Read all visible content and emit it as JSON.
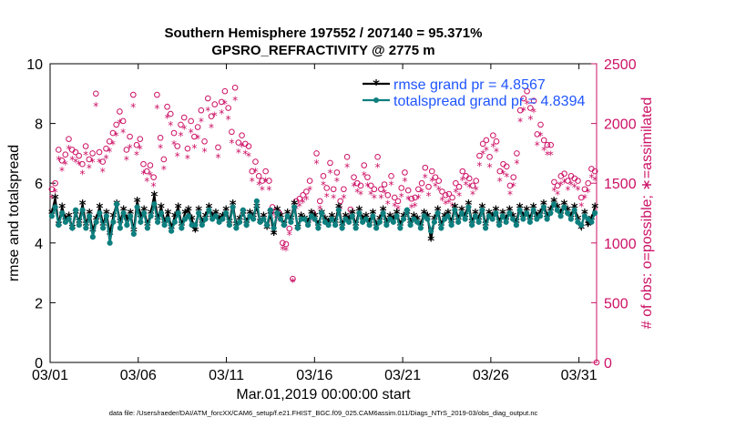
{
  "chart_data": {
    "type": "line",
    "title_line1": "Southern Hemisphere 197552 / 207140 = 95.371%",
    "title_line2": "GPSRO_REFRACTIVITY @ 2775 m",
    "xlabel": "Mar.01,2019 00:00:00 start",
    "ylabel_left": "rmse and totalspread",
    "ylabel_right": "# of obs: o=possible; ∗=assimilated",
    "footer": "data file: /Users/raeder/DAI/ATM_forcXX/CAM6_setup/f.e21.FHIST_BGC.f09_025.CAM6assim.011/Diags_NTrS_2019-03/obs_diag_output.nc",
    "x_ticks": [
      "03/01",
      "03/06",
      "03/11",
      "03/16",
      "03/21",
      "03/26",
      "03/31"
    ],
    "x_tick_days": [
      1,
      6,
      11,
      16,
      21,
      26,
      31
    ],
    "xlim_days": [
      1,
      32
    ],
    "ylim_left": [
      0,
      10
    ],
    "yticks_left": [
      0,
      2,
      4,
      6,
      8,
      10
    ],
    "ylim_right": [
      0,
      2500
    ],
    "yticks_right": [
      0,
      500,
      1000,
      1500,
      2000,
      2500
    ],
    "legend": {
      "location": "top-right",
      "entries": [
        "rmse grand pr = 4.8567",
        "totalspread grand pr = 4.8394"
      ]
    },
    "colors": {
      "rmse": "#000000",
      "spread": "#0f7f7f",
      "obs": "#cc1166",
      "right_axis": "#cc1166",
      "legend_text": "#1f55ff"
    },
    "series": [
      {
        "name": "rmse",
        "values": [
          5.0,
          5.5,
          4.6,
          5.2,
          4.8,
          4.9,
          4.5,
          5.0,
          4.7,
          5.3,
          4.6,
          5.0,
          4.4,
          4.8,
          5.2,
          4.6,
          5.0,
          4.3,
          4.9,
          5.3,
          4.7,
          5.1,
          4.8,
          5.0,
          4.4,
          5.4,
          4.9,
          5.1,
          4.6,
          5.0,
          5.6,
          4.8,
          5.2,
          4.7,
          5.0,
          4.5,
          4.9,
          5.2,
          4.6,
          5.0,
          5.1,
          4.8,
          4.4,
          5.1,
          4.7,
          4.9,
          5.2,
          4.9,
          5.0,
          4.8,
          4.9,
          5.1,
          4.7,
          5.3,
          4.6,
          4.8,
          5.0,
          4.7,
          5.0,
          4.9,
          5.2,
          4.7,
          4.9,
          4.5,
          5.0,
          4.3,
          5.1,
          4.9,
          4.6,
          5.0,
          4.8,
          5.3,
          4.5,
          4.9,
          4.8,
          4.7,
          5.0,
          4.9,
          4.6,
          5.0,
          4.8,
          4.7,
          4.9,
          4.7,
          5.2,
          4.6,
          4.9,
          4.8,
          5.0,
          4.6,
          5.1,
          4.8,
          4.9,
          4.7,
          5.0,
          4.6,
          4.8,
          5.1,
          4.7,
          4.9,
          4.8,
          5.0,
          4.6,
          4.9,
          5.0,
          4.7,
          4.9,
          4.8,
          4.6,
          5.0,
          4.9,
          4.1,
          4.8,
          5.1,
          4.6,
          4.9,
          5.0,
          4.7,
          5.2,
          4.8,
          5.1,
          4.9,
          5.3,
          4.7,
          5.0,
          4.8,
          5.2,
          4.6,
          5.0,
          4.9,
          5.1,
          4.7,
          5.0,
          4.8,
          5.1,
          4.9,
          4.7,
          5.2,
          4.9,
          5.1,
          4.8,
          5.2,
          4.9,
          5.0,
          5.3,
          4.9,
          5.1,
          5.4,
          5.2,
          5.0,
          5.3,
          5.1,
          4.9,
          5.2,
          4.8,
          4.5,
          5.0,
          4.6,
          4.8,
          5.2
        ]
      },
      {
        "name": "totalspread",
        "values": [
          4.9,
          5.2,
          4.6,
          5.0,
          4.7,
          4.8,
          4.5,
          5.1,
          4.6,
          5.1,
          4.5,
          4.9,
          4.2,
          4.7,
          5.0,
          4.5,
          4.9,
          4.0,
          4.7,
          5.3,
          4.5,
          5.0,
          4.6,
          4.9,
          4.3,
          5.2,
          4.7,
          5.0,
          4.5,
          4.9,
          5.3,
          4.7,
          5.0,
          4.6,
          4.8,
          4.4,
          4.7,
          5.0,
          4.5,
          4.8,
          4.9,
          4.6,
          4.6,
          5.0,
          4.6,
          4.8,
          5.1,
          4.8,
          4.9,
          4.7,
          4.8,
          5.0,
          4.6,
          5.2,
          4.5,
          4.7,
          5.1,
          4.6,
          4.9,
          4.8,
          5.4,
          4.7,
          4.8,
          4.6,
          5.1,
          4.5,
          5.0,
          4.8,
          4.6,
          4.9,
          4.7,
          5.2,
          4.5,
          4.8,
          4.8,
          4.6,
          4.9,
          4.8,
          4.5,
          5.0,
          4.7,
          4.6,
          4.8,
          4.6,
          5.1,
          4.5,
          4.8,
          4.7,
          4.9,
          4.5,
          5.0,
          4.7,
          4.8,
          4.6,
          4.9,
          4.5,
          4.7,
          5.0,
          4.6,
          4.8,
          4.7,
          4.9,
          4.5,
          4.8,
          5.1,
          4.6,
          4.8,
          4.7,
          4.5,
          4.9,
          4.8,
          4.4,
          4.7,
          5.0,
          4.5,
          4.8,
          4.9,
          4.6,
          5.1,
          4.7,
          5.0,
          4.8,
          5.2,
          4.6,
          4.9,
          4.7,
          5.1,
          4.5,
          4.9,
          4.8,
          5.0,
          4.6,
          4.9,
          4.7,
          5.0,
          4.8,
          4.6,
          5.1,
          4.8,
          5.0,
          4.7,
          5.1,
          4.8,
          4.9,
          5.2,
          4.8,
          5.0,
          5.3,
          5.1,
          4.9,
          5.2,
          5.0,
          4.8,
          5.1,
          4.7,
          4.6,
          4.9,
          4.8,
          4.7,
          5.0
        ]
      },
      {
        "name": "obs possible",
        "values": [
          1450,
          1500,
          1780,
          1690,
          1740,
          1870,
          1780,
          1760,
          1730,
          1660,
          1810,
          1700,
          1750,
          2250,
          1760,
          1680,
          1790,
          1850,
          1920,
          1990,
          2100,
          2020,
          1780,
          1890,
          2240,
          1820,
          1870,
          1660,
          1600,
          1650,
          1550,
          2240,
          1880,
          1700,
          2140,
          2080,
          1920,
          1810,
          1990,
          2050,
          1790,
          2020,
          1890,
          1970,
          2110,
          1850,
          2210,
          2060,
          2160,
          1800,
          2180,
          2270,
          2130,
          1930,
          2300,
          1840,
          1900,
          1830,
          1810,
          1600,
          1680,
          1560,
          1520,
          1600,
          1520,
          1300,
          1270,
          1250,
          1000,
          990,
          1120,
          700,
          1350,
          1370,
          1400,
          1430,
          1520,
          1250,
          1750,
          1350,
          1560,
          1460,
          1670,
          1450,
          1590,
          1350,
          1450,
          1720,
          1280,
          1550,
          1500,
          1480,
          1650,
          1550,
          1480,
          1450,
          1720,
          1450,
          1490,
          1400,
          1560,
          1380,
          1350,
          1460,
          1590,
          1440,
          1370,
          1380,
          1450,
          1500,
          1630,
          1470,
          1600,
          1550,
          1520,
          1430,
          1400,
          1410,
          1380,
          1500,
          1470,
          1600,
          1560,
          1540,
          1480,
          1520,
          1730,
          1830,
          1860,
          1720,
          1900,
          1850,
          1600,
          1660,
          1640,
          1480,
          1550,
          1750,
          2110,
          2210,
          2270,
          2130,
          2190,
          1910,
          1990,
          1860,
          1820,
          1820,
          1510,
          1480,
          1560,
          1580,
          1520,
          1560,
          1540,
          1520,
          1380,
          1450,
          1500,
          1620,
          1600
        ]
      },
      {
        "name": "obs assimilated",
        "values": [
          1380,
          1430,
          1700,
          1610,
          1660,
          1790,
          1700,
          1680,
          1660,
          1580,
          1740,
          1630,
          1680,
          2150,
          1680,
          1600,
          1710,
          1770,
          1830,
          1900,
          2010,
          1930,
          1700,
          1800,
          2140,
          1740,
          1790,
          1580,
          1520,
          1570,
          1480,
          2130,
          1800,
          1620,
          2050,
          1990,
          1830,
          1730,
          1900,
          1960,
          1710,
          1930,
          1800,
          1880,
          2020,
          1770,
          2110,
          1970,
          2070,
          1720,
          2090,
          2170,
          2040,
          1840,
          2200,
          1760,
          1810,
          1750,
          1730,
          1520,
          1600,
          1490,
          1450,
          1520,
          1450,
          1240,
          1210,
          1190,
          950,
          940,
          1070,
          680,
          1290,
          1310,
          1340,
          1370,
          1450,
          1190,
          1670,
          1290,
          1490,
          1390,
          1590,
          1380,
          1520,
          1290,
          1380,
          1640,
          1220,
          1480,
          1430,
          1410,
          1570,
          1480,
          1410,
          1380,
          1640,
          1380,
          1420,
          1330,
          1490,
          1310,
          1290,
          1390,
          1520,
          1370,
          1300,
          1310,
          1380,
          1430,
          1550,
          1400,
          1520,
          1480,
          1450,
          1360,
          1330,
          1340,
          1310,
          1430,
          1400,
          1530,
          1490,
          1470,
          1410,
          1450,
          1650,
          1750,
          1780,
          1640,
          1810,
          1770,
          1520,
          1580,
          1560,
          1410,
          1480,
          1670,
          2020,
          2110,
          2170,
          2040,
          2100,
          1820,
          1900,
          1780,
          1740,
          1740,
          1440,
          1410,
          1490,
          1510,
          1450,
          1490,
          1470,
          1450,
          1310,
          1380,
          1430,
          1550,
          1530
        ]
      }
    ]
  }
}
